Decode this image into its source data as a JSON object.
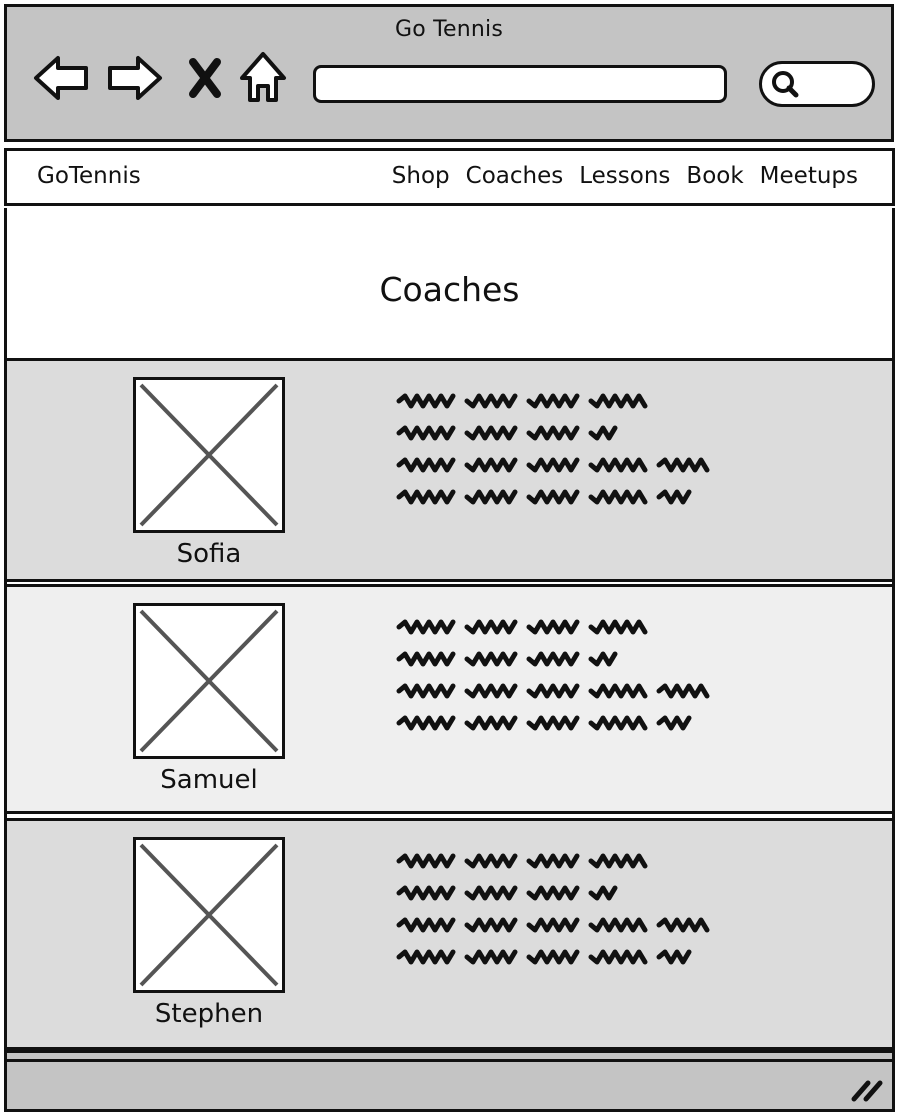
{
  "window": {
    "title": "Go Tennis"
  },
  "toolbar": {
    "back_icon": "back-arrow-icon",
    "forward_icon": "forward-arrow-icon",
    "stop_icon": "close-x-icon",
    "home_icon": "home-icon",
    "address_value": "",
    "search_icon": "search-icon"
  },
  "site_nav": {
    "brand": "GoTennis",
    "items": [
      {
        "label": "Shop"
      },
      {
        "label": "Coaches"
      },
      {
        "label": "Lessons"
      },
      {
        "label": "Book"
      },
      {
        "label": "Meetups"
      }
    ]
  },
  "page": {
    "title": "Coaches"
  },
  "coaches": [
    {
      "name": "Sofia",
      "photo_icon": "image-placeholder-icon"
    },
    {
      "name": "Samuel",
      "photo_icon": "image-placeholder-icon"
    },
    {
      "name": "Stephen",
      "photo_icon": "image-placeholder-icon"
    }
  ],
  "colors": {
    "chrome": "#c4c4c4",
    "row_dark": "#dcdcdc",
    "row_light": "#efefef",
    "ink": "#111111"
  }
}
